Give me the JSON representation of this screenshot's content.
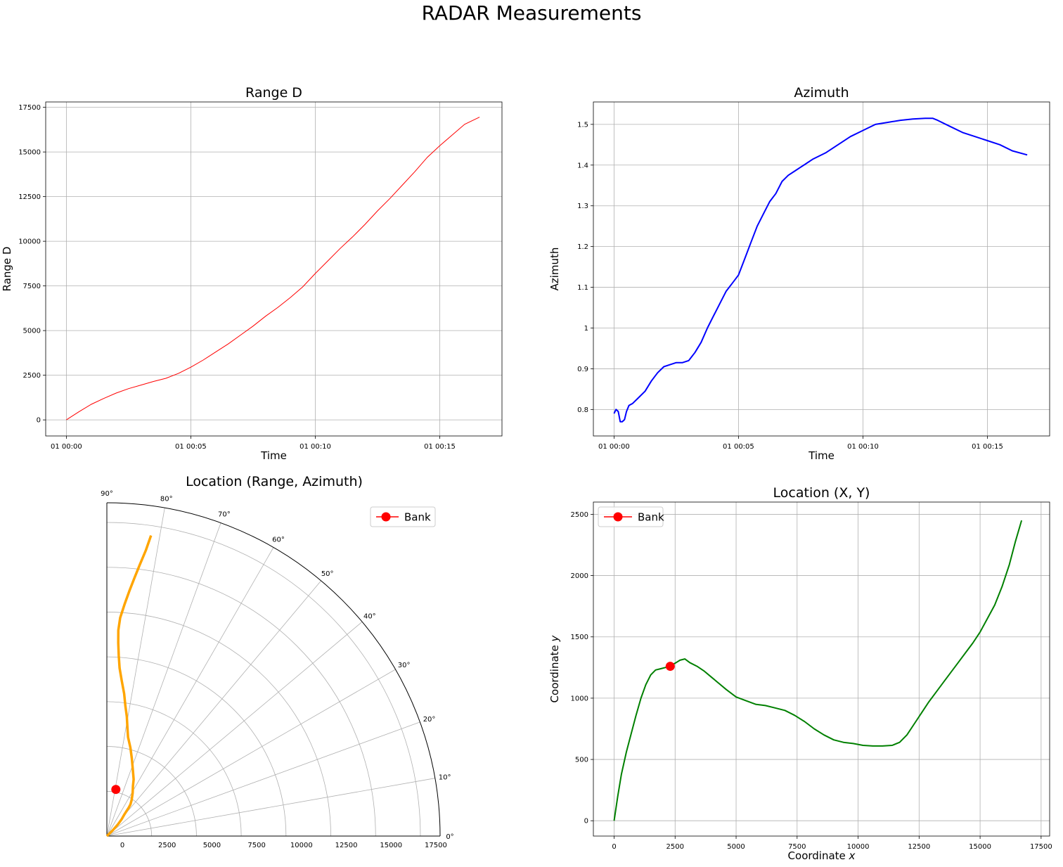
{
  "suptitle": "RADAR Measurements",
  "colors": {
    "range": "#ff0000",
    "azimuth": "#0000ff",
    "polar": "#ffa500",
    "xy": "#008000",
    "bank": "#ff0000"
  },
  "chart_data": [
    {
      "id": "range",
      "type": "line",
      "title": "Range D",
      "xlabel": "Time",
      "ylabel": "Range D",
      "x_ticks": [
        "01 00:00",
        "01 00:05",
        "01 00:10",
        "01 00:15"
      ],
      "x_tick_minutes": [
        0,
        5,
        10,
        15
      ],
      "xlim_minutes": [
        -0.83,
        17.5
      ],
      "ylim": [
        -900,
        17800
      ],
      "y_ticks": [
        0,
        2500,
        5000,
        7500,
        10000,
        12500,
        15000,
        17500
      ],
      "grid": true,
      "series": [
        {
          "x_minutes": [
            0,
            0.5,
            1,
            1.5,
            2,
            2.5,
            3,
            3.5,
            4,
            4.5,
            5,
            5.5,
            6,
            6.5,
            7,
            7.5,
            8,
            8.5,
            9,
            9.5,
            10,
            10.5,
            11,
            11.5,
            12,
            12.5,
            13,
            13.5,
            14,
            14.5,
            15,
            15.5,
            16,
            16.6
          ],
          "values": [
            0,
            450,
            870,
            1200,
            1500,
            1750,
            1950,
            2150,
            2330,
            2600,
            2950,
            3350,
            3800,
            4250,
            4750,
            5250,
            5800,
            6300,
            6850,
            7450,
            8200,
            8900,
            9600,
            10250,
            10950,
            11700,
            12400,
            13150,
            13900,
            14700,
            15350,
            15950,
            16550,
            16950
          ]
        }
      ]
    },
    {
      "id": "azimuth",
      "type": "line",
      "title": "Azimuth",
      "xlabel": "Time",
      "ylabel": "Azimuth",
      "x_ticks": [
        "01 00:00",
        "01 00:05",
        "01 00:10",
        "01 00:15"
      ],
      "x_tick_minutes": [
        0,
        5,
        10,
        15
      ],
      "xlim_minutes": [
        -0.83,
        17.5
      ],
      "ylim": [
        0.735,
        1.555
      ],
      "y_ticks": [
        0.8,
        0.9,
        1.0,
        1.1,
        1.2,
        1.3,
        1.4,
        1.5
      ],
      "grid": true,
      "series": [
        {
          "x_minutes": [
            0,
            0.08,
            0.17,
            0.25,
            0.33,
            0.42,
            0.5,
            0.6,
            0.75,
            1,
            1.25,
            1.5,
            1.75,
            2,
            2.25,
            2.5,
            2.75,
            3,
            3.25,
            3.5,
            3.75,
            4,
            4.25,
            4.5,
            4.75,
            5,
            5.25,
            5.5,
            5.75,
            6,
            6.25,
            6.5,
            6.75,
            7,
            7.25,
            7.5,
            7.75,
            8,
            8.5,
            9,
            9.5,
            10,
            10.5,
            11,
            11.5,
            12,
            12.5,
            12.8,
            13,
            13.5,
            14,
            14.5,
            15,
            15.5,
            16,
            16.6
          ],
          "values": [
            0.79,
            0.8,
            0.795,
            0.77,
            0.77,
            0.775,
            0.795,
            0.81,
            0.815,
            0.83,
            0.845,
            0.87,
            0.89,
            0.905,
            0.91,
            0.915,
            0.915,
            0.92,
            0.94,
            0.965,
            1.0,
            1.03,
            1.06,
            1.09,
            1.11,
            1.13,
            1.17,
            1.21,
            1.25,
            1.28,
            1.31,
            1.33,
            1.36,
            1.375,
            1.385,
            1.395,
            1.405,
            1.415,
            1.43,
            1.45,
            1.47,
            1.485,
            1.5,
            1.505,
            1.51,
            1.513,
            1.515,
            1.515,
            1.51,
            1.495,
            1.48,
            1.47,
            1.46,
            1.45,
            1.435,
            1.425
          ]
        }
      ]
    },
    {
      "id": "polar",
      "type": "scatter",
      "title": "Location (Range, Azimuth)",
      "theta_ticks": [
        "0°",
        "10°",
        "20°",
        "30°",
        "40°",
        "50°",
        "60°",
        "70°",
        "80°",
        "90°"
      ],
      "theta_tick_deg": [
        0,
        10,
        20,
        30,
        40,
        50,
        60,
        70,
        80,
        90
      ],
      "r_ticks": [
        0,
        2500,
        5000,
        7500,
        10000,
        12500,
        15000,
        17500
      ],
      "r_max": 18600,
      "grid": true,
      "legend": {
        "label": "Bank",
        "placement": "upper right"
      },
      "series": [
        {
          "theta_rad": [
            0.79,
            0.77,
            0.81,
            0.85,
            0.89,
            0.905,
            0.915,
            0.93,
            0.97,
            1.03,
            1.09,
            1.13,
            1.2,
            1.26,
            1.31,
            1.36,
            1.385,
            1.405,
            1.43,
            1.45,
            1.475,
            1.495,
            1.505,
            1.512,
            1.515,
            1.51,
            1.495,
            1.48,
            1.465,
            1.45,
            1.435,
            1.425
          ],
          "r": [
            0,
            450,
            900,
            1250,
            1550,
            1800,
            2000,
            2200,
            2450,
            2800,
            3150,
            3500,
            4000,
            4550,
            5100,
            5650,
            6200,
            6750,
            7350,
            8000,
            8700,
            9400,
            10100,
            10800,
            11500,
            12200,
            12950,
            13700,
            14450,
            15250,
            16100,
            16950
          ]
        }
      ],
      "bank_marker": {
        "theta_rad": 1.38,
        "r": 2650
      }
    },
    {
      "id": "xy",
      "type": "line",
      "title": "Location (X, Y)",
      "xlabel": "Coordinate x",
      "ylabel": "Coordinate y",
      "xlim": [
        -850,
        17850
      ],
      "ylim": [
        -125,
        2600
      ],
      "x_ticks": [
        0,
        2500,
        5000,
        7500,
        10000,
        12500,
        15000,
        17500
      ],
      "y_ticks": [
        0,
        500,
        1000,
        1500,
        2000,
        2500
      ],
      "grid": true,
      "legend": {
        "label": "Bank",
        "placement": "upper left"
      },
      "series": [
        {
          "x": [
            0,
            150,
            300,
            500,
            700,
            900,
            1100,
            1300,
            1500,
            1700,
            1900,
            2100,
            2300,
            2500,
            2700,
            2900,
            3100,
            3400,
            3700,
            4000,
            4300,
            4600,
            5000,
            5400,
            5800,
            6200,
            6600,
            7000,
            7400,
            7800,
            8200,
            8600,
            9000,
            9400,
            9800,
            10200,
            10600,
            11000,
            11400,
            11700,
            12000,
            12300,
            12600,
            12900,
            13200,
            13500,
            13800,
            14100,
            14400,
            14700,
            15000,
            15300,
            15600,
            15900,
            16200,
            16450,
            16700
          ],
          "y": [
            0,
            200,
            380,
            560,
            710,
            860,
            1000,
            1110,
            1190,
            1230,
            1240,
            1250,
            1265,
            1285,
            1310,
            1320,
            1290,
            1260,
            1220,
            1170,
            1120,
            1070,
            1010,
            980,
            950,
            940,
            920,
            900,
            860,
            810,
            750,
            700,
            660,
            640,
            630,
            615,
            610,
            610,
            615,
            640,
            700,
            790,
            880,
            970,
            1050,
            1130,
            1210,
            1290,
            1370,
            1450,
            1540,
            1650,
            1760,
            1910,
            2090,
            2280,
            2450
          ]
        }
      ],
      "bank_marker": {
        "x": 2300,
        "y": 1260
      }
    }
  ]
}
